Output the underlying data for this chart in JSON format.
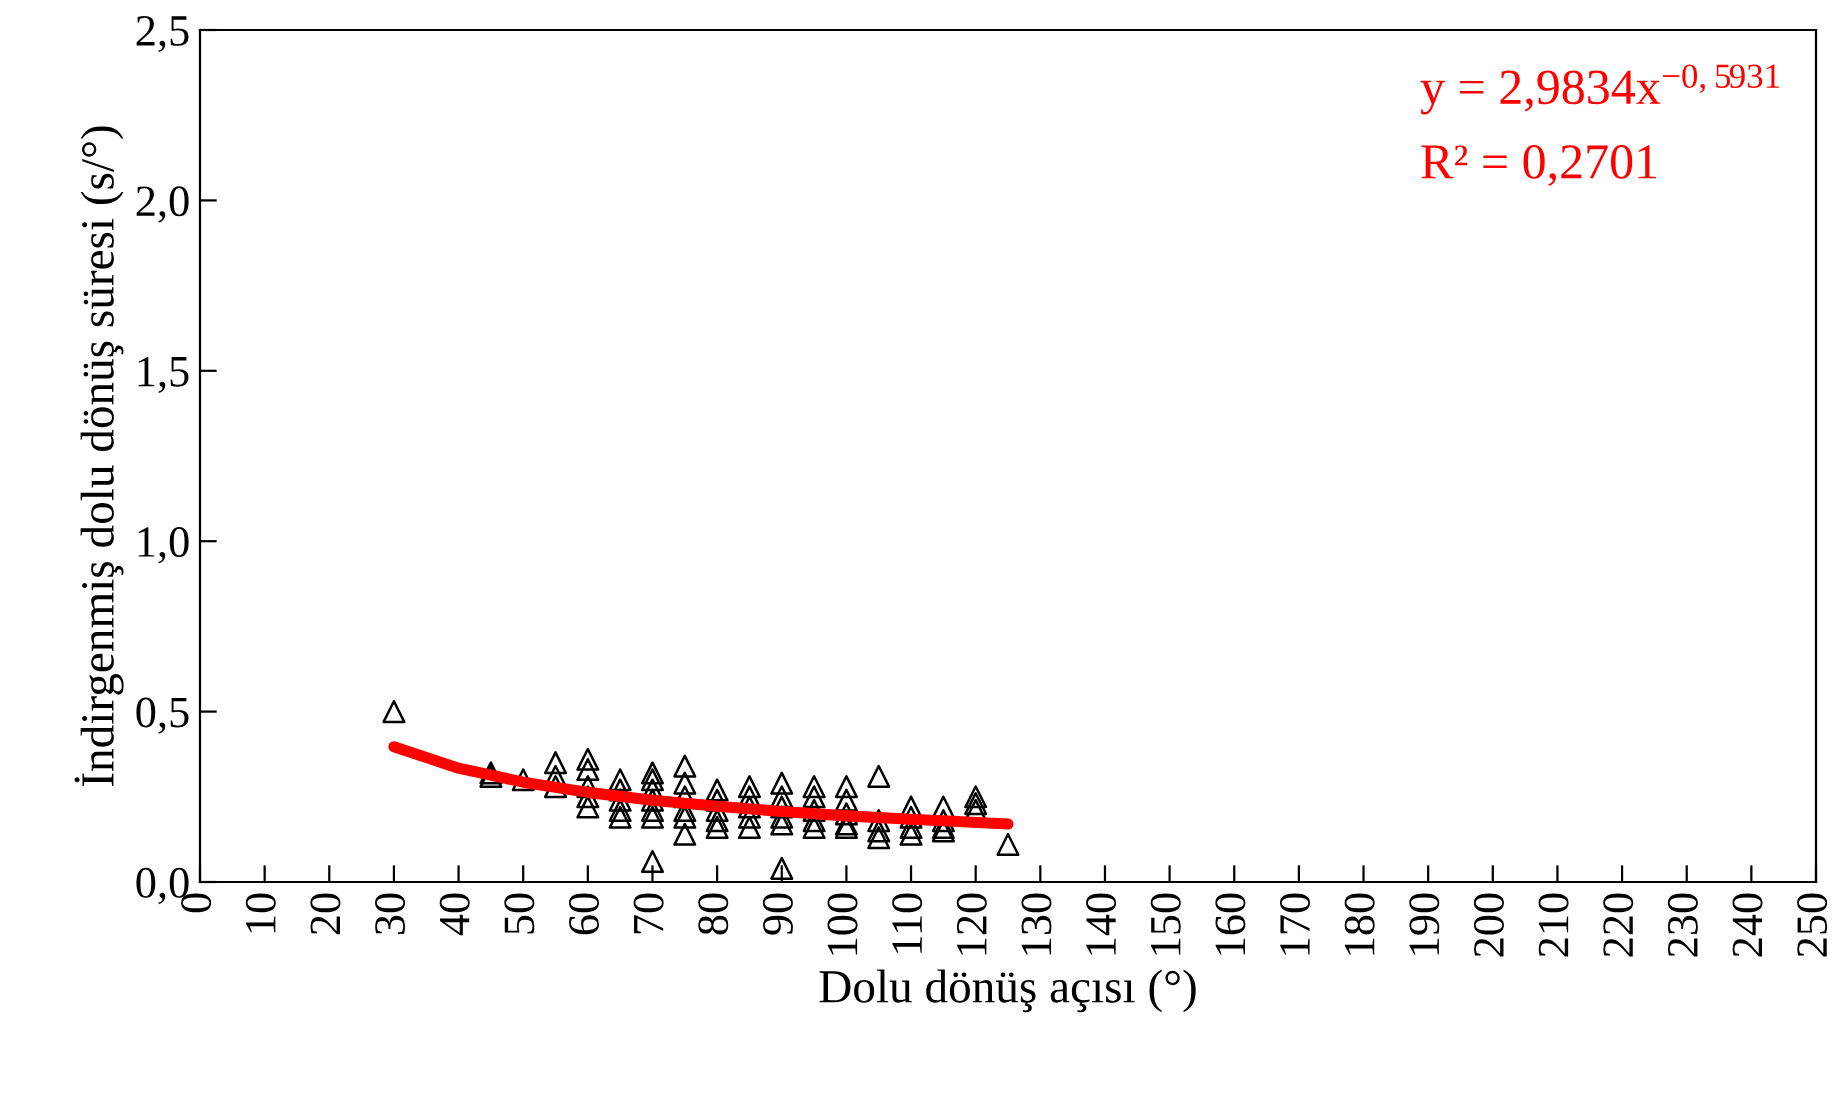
{
  "chart_data": {
    "type": "scatter",
    "xlabel": "Dolu dönüş açısı (°)",
    "ylabel": "İndirgenmiş dolu dönüş süresi (s/°)",
    "xlim": [
      0,
      250
    ],
    "xticks": [
      0,
      10,
      20,
      30,
      40,
      50,
      60,
      70,
      80,
      90,
      100,
      110,
      120,
      130,
      140,
      150,
      160,
      170,
      180,
      190,
      200,
      210,
      220,
      230,
      240,
      250
    ],
    "ylim": [
      0,
      2.5
    ],
    "yticks": [
      {
        "value": 0,
        "label": "0,0"
      },
      {
        "value": 0.5,
        "label": "0,5"
      },
      {
        "value": 1.0,
        "label": "1,0"
      },
      {
        "value": 1.5,
        "label": "1,5"
      },
      {
        "value": 2.0,
        "label": "2,0"
      },
      {
        "value": 2.5,
        "label": "2,5"
      }
    ],
    "grid": false,
    "legend": false,
    "annotations": [
      "y = 2,9834x$^{−0,5931}$",
      "R² = 0,2701"
    ],
    "series": [
      {
        "marker": "triangle",
        "color": "#000000",
        "x": [
          30,
          45,
          45,
          50,
          55,
          55,
          55,
          60,
          60,
          60,
          60,
          60,
          65,
          65,
          65,
          65,
          65,
          70,
          70,
          70,
          70,
          70,
          70,
          70,
          75,
          75,
          75,
          75,
          75,
          75,
          80,
          80,
          80,
          80,
          80,
          85,
          85,
          85,
          85,
          85,
          90,
          90,
          90,
          90,
          90,
          90,
          95,
          95,
          95,
          95,
          95,
          100,
          100,
          100,
          100,
          100,
          105,
          105,
          105,
          105,
          110,
          110,
          110,
          110,
          115,
          115,
          115,
          115,
          120,
          120,
          120,
          125
        ],
        "values": [
          0.5,
          0.32,
          0.31,
          0.3,
          0.35,
          0.31,
          0.28,
          0.36,
          0.33,
          0.28,
          0.25,
          0.22,
          0.3,
          0.27,
          0.24,
          0.21,
          0.19,
          0.32,
          0.3,
          0.27,
          0.24,
          0.21,
          0.19,
          0.06,
          0.34,
          0.29,
          0.25,
          0.21,
          0.19,
          0.14,
          0.27,
          0.24,
          0.21,
          0.18,
          0.16,
          0.28,
          0.25,
          0.22,
          0.19,
          0.16,
          0.29,
          0.25,
          0.22,
          0.19,
          0.17,
          0.04,
          0.28,
          0.25,
          0.21,
          0.18,
          0.16,
          0.28,
          0.24,
          0.2,
          0.17,
          0.16,
          0.31,
          0.18,
          0.15,
          0.13,
          0.22,
          0.19,
          0.16,
          0.14,
          0.22,
          0.18,
          0.16,
          0.15,
          0.25,
          0.23,
          0.21,
          0.11
        ]
      },
      {
        "type": "line",
        "marker": "none",
        "color": "#ff0000",
        "x": [
          30,
          40,
          50,
          60,
          70,
          80,
          90,
          100,
          110,
          125
        ],
        "values": [
          0.397,
          0.334,
          0.293,
          0.263,
          0.24,
          0.222,
          0.207,
          0.194,
          0.184,
          0.17
        ]
      }
    ]
  }
}
